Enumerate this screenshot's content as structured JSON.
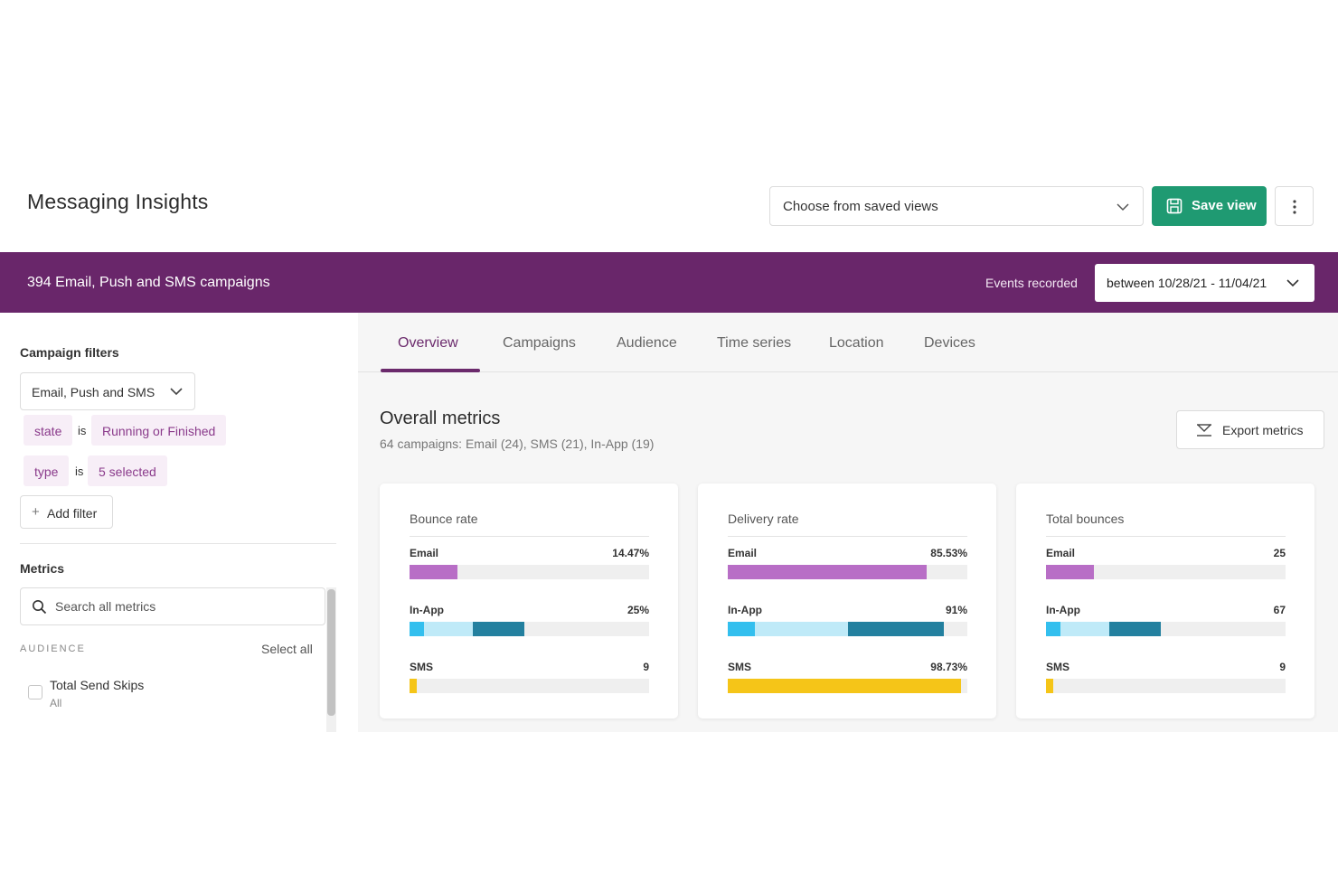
{
  "header": {
    "title": "Messaging Insights",
    "saved_views_placeholder": "Choose from saved views",
    "save_view_label": "Save view"
  },
  "banner": {
    "campaign_count": "394 Email, Push and SMS campaigns",
    "events_label": "Events recorded",
    "date_range": "between 10/28/21 - 11/04/21"
  },
  "sidebar": {
    "campaign_filters_title": "Campaign filters",
    "channel_select": "Email, Push and SMS",
    "filters": [
      {
        "field": "state",
        "op": "is",
        "value": "Running or Finished"
      },
      {
        "field": "type",
        "op": "is",
        "value": "5 selected"
      }
    ],
    "add_filter_label": "Add filter",
    "metrics_title": "Metrics",
    "search_placeholder": "Search all metrics",
    "audience_label": "AUDIENCE",
    "select_all_label": "Select all",
    "metric_items": [
      {
        "name": "Total Send Skips",
        "sub": "All"
      }
    ]
  },
  "tabs": [
    {
      "label": "Overview",
      "active": true
    },
    {
      "label": "Campaigns",
      "active": false
    },
    {
      "label": "Audience",
      "active": false
    },
    {
      "label": "Time series",
      "active": false
    },
    {
      "label": "Location",
      "active": false
    },
    {
      "label": "Devices",
      "active": false
    }
  ],
  "overview": {
    "title": "Overall metrics",
    "subtitle": "64 campaigns: Email (24), SMS (21), In-App (19)",
    "export_label": "Export metrics"
  },
  "colors": {
    "brand_purple": "#69266a",
    "save_green": "#1f9a72",
    "email_bar": "#b86ec6",
    "inapp_light": "#33bfee",
    "inapp_pale": "#bfeaf8",
    "inapp_dark": "#23809f",
    "sms_bar": "#f5c518"
  },
  "cards": [
    {
      "title": "Bounce rate",
      "rows": [
        {
          "label": "Email",
          "value": "14.47%",
          "fill": 0.2
        },
        {
          "label": "In-App",
          "value": "25%",
          "fill": 0.48
        },
        {
          "label": "SMS",
          "value": "9",
          "fill": 0.03
        }
      ]
    },
    {
      "title": "Delivery rate",
      "rows": [
        {
          "label": "Email",
          "value": "85.53%",
          "fill": 0.83
        },
        {
          "label": "In-App",
          "value": "91%",
          "fill": 0.9
        },
        {
          "label": "SMS",
          "value": "98.73%",
          "fill": 0.975
        }
      ]
    },
    {
      "title": "Total bounces",
      "rows": [
        {
          "label": "Email",
          "value": "25",
          "fill": 0.2
        },
        {
          "label": "In-App",
          "value": "67",
          "fill": 0.48
        },
        {
          "label": "SMS",
          "value": "9",
          "fill": 0.03
        }
      ]
    }
  ]
}
